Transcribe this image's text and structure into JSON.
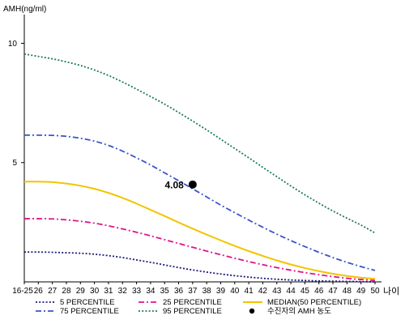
{
  "chart_data": {
    "type": "line",
    "title": "",
    "ylabel": "AMH(ng/ml)",
    "xlabel": "나이",
    "ylim": [
      0,
      11
    ],
    "yticks": [
      5,
      10
    ],
    "x": [
      "16-25",
      "26",
      "27",
      "28",
      "29",
      "30",
      "31",
      "32",
      "33",
      "34",
      "35",
      "36",
      "37",
      "38",
      "39",
      "40",
      "41",
      "42",
      "43",
      "44",
      "45",
      "46",
      "47",
      "48",
      "49",
      "50"
    ],
    "grid": false,
    "legend_position": "bottom",
    "series": [
      {
        "name": "5 PERCENTILE",
        "style": "dotted",
        "color": "#1a1a7a",
        "values": [
          1.25,
          1.25,
          1.24,
          1.22,
          1.2,
          1.16,
          1.1,
          1.02,
          0.92,
          0.82,
          0.71,
          0.6,
          0.5,
          0.41,
          0.33,
          0.26,
          0.2,
          0.15,
          0.11,
          0.08,
          0.06,
          0.04,
          0.03,
          0.02,
          0.01,
          0.0
        ]
      },
      {
        "name": "25 PERCENTILE",
        "style": "dashdot",
        "color": "#e0148c",
        "values": [
          2.65,
          2.65,
          2.64,
          2.6,
          2.54,
          2.46,
          2.35,
          2.22,
          2.08,
          1.93,
          1.77,
          1.61,
          1.45,
          1.29,
          1.14,
          0.99,
          0.85,
          0.72,
          0.6,
          0.49,
          0.39,
          0.3,
          0.22,
          0.15,
          0.1,
          0.06
        ]
      },
      {
        "name": "MEDIAN(50 PERCENTILE)",
        "style": "solid",
        "color": "#f2c400",
        "values": [
          4.2,
          4.2,
          4.18,
          4.12,
          4.03,
          3.9,
          3.73,
          3.52,
          3.28,
          3.02,
          2.76,
          2.49,
          2.23,
          1.98,
          1.74,
          1.51,
          1.29,
          1.09,
          0.9,
          0.73,
          0.58,
          0.45,
          0.34,
          0.25,
          0.18,
          0.13
        ]
      },
      {
        "name": "75 PERCENTILE",
        "style": "dashdot",
        "color": "#3a55c8",
        "values": [
          6.15,
          6.15,
          6.14,
          6.1,
          6.02,
          5.9,
          5.72,
          5.48,
          5.2,
          4.9,
          4.57,
          4.24,
          3.9,
          3.56,
          3.22,
          2.9,
          2.59,
          2.29,
          2.0,
          1.73,
          1.48,
          1.24,
          1.02,
          0.82,
          0.64,
          0.48
        ]
      },
      {
        "name": "95 PERCENTILE",
        "style": "dotted",
        "color": "#1e7a55",
        "values": [
          9.55,
          9.45,
          9.35,
          9.22,
          9.07,
          8.88,
          8.65,
          8.38,
          8.08,
          7.77,
          7.45,
          7.1,
          6.74,
          6.37,
          5.98,
          5.59,
          5.2,
          4.8,
          4.41,
          4.02,
          3.65,
          3.3,
          2.97,
          2.67,
          2.38,
          2.05
        ]
      }
    ],
    "marker": {
      "name": "수진자의 AMH 농도",
      "x": "37",
      "y": 4.08,
      "label": "4.08",
      "color": "#000000"
    },
    "legend_order": [
      "5 PERCENTILE",
      "25 PERCENTILE",
      "MEDIAN(50 PERCENTILE)",
      "75 PERCENTILE",
      "95 PERCENTILE",
      "수진자의 AMH 농도"
    ]
  }
}
